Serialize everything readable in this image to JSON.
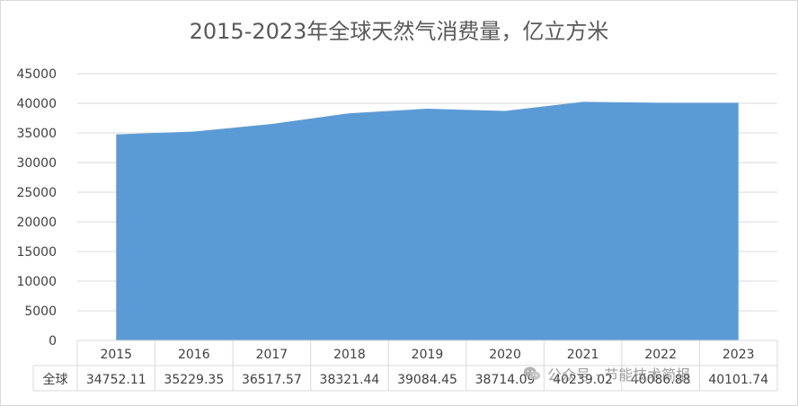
{
  "chart_data": {
    "type": "area",
    "title": "2015-2023年全球天然气消费量，亿立方米",
    "categories": [
      "2015",
      "2016",
      "2017",
      "2018",
      "2019",
      "2020",
      "2021",
      "2022",
      "2023"
    ],
    "series": [
      {
        "name": "全球",
        "values": [
          34752.11,
          35229.35,
          36517.57,
          38321.44,
          39084.45,
          38714.09,
          40239.02,
          40086.88,
          40101.74
        ],
        "labels": [
          "34752.11",
          "35229.35",
          "36517.57",
          "38321.44",
          "39084.45",
          "38714.09",
          "40239.02",
          "40086.88",
          "40101.74"
        ]
      }
    ],
    "ylim": [
      0,
      45000
    ],
    "yticks": [
      "0",
      "5000",
      "10000",
      "15000",
      "20000",
      "25000",
      "30000",
      "35000",
      "40000",
      "45000"
    ],
    "grid": true,
    "data_table": true,
    "legend": "none",
    "colors": {
      "fill": "#5b9bd5",
      "grid": "#d9d9d9",
      "text": "#404040",
      "title": "#595959"
    }
  },
  "watermark": {
    "text": "公众号 · 节能技术简报",
    "icon": "wechat-icon"
  }
}
